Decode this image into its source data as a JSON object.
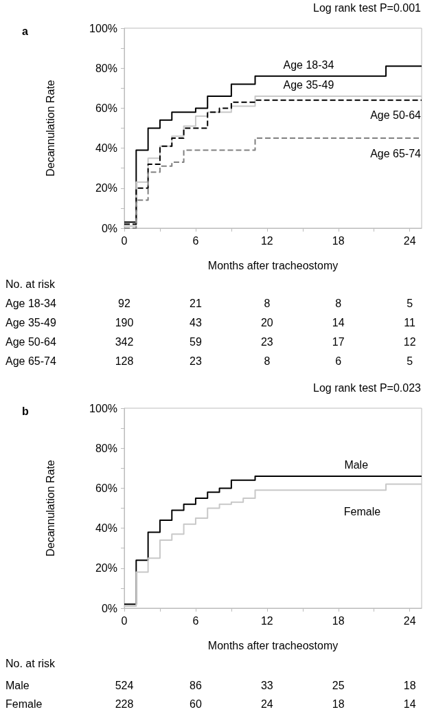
{
  "chart_data": [
    {
      "type": "step",
      "title": "a",
      "xlabel": "Months after tracheostomy",
      "ylabel": "Decannulation Rate",
      "xlim": [
        0,
        25
      ],
      "xticks": [
        0,
        {
          "value": 3,
          "label": null
        },
        6,
        {
          "value": 9,
          "label": null
        },
        12,
        {
          "value": 15,
          "label": null
        },
        18,
        {
          "value": 21,
          "label": null
        },
        24
      ],
      "ylim": [
        0,
        100
      ],
      "yticks": [
        {
          "value": 0,
          "label": "0%"
        },
        {
          "value": 10,
          "label": null
        },
        {
          "value": 20,
          "label": "20%"
        },
        {
          "value": 30,
          "label": null
        },
        {
          "value": 40,
          "label": "40%"
        },
        {
          "value": 50,
          "label": null
        },
        {
          "value": 60,
          "label": "60%"
        },
        {
          "value": 70,
          "label": null
        },
        {
          "value": 80,
          "label": "80%"
        },
        {
          "value": 90,
          "label": null
        },
        {
          "value": 100,
          "label": "100%"
        }
      ],
      "grid": false,
      "legend": false,
      "marker": "none",
      "series": [
        {
          "name": "Age 18-34",
          "color": "#000000",
          "line_style": "solid",
          "x": [
            0,
            1,
            2,
            3,
            4,
            6,
            7,
            9,
            11,
            22,
            25
          ],
          "values": [
            3,
            39,
            50,
            54,
            58,
            60,
            66,
            72,
            76,
            81,
            81
          ]
        },
        {
          "name": "Age 35-49",
          "color": "#c8c8c8",
          "line_style": "solid",
          "x": [
            0,
            1,
            2,
            3,
            4,
            5,
            6,
            7,
            9,
            11,
            25
          ],
          "values": [
            1,
            23,
            35,
            41,
            46,
            51,
            56,
            58,
            61,
            66,
            66
          ]
        },
        {
          "name": "Age 50-64",
          "color": "#000000",
          "line_style": "dashed",
          "x": [
            0,
            1,
            2,
            3,
            4,
            5,
            7,
            8,
            9,
            11,
            25
          ],
          "values": [
            2,
            20,
            32,
            41,
            45,
            50,
            58,
            60,
            63,
            64,
            64
          ]
        },
        {
          "name": "Age 65-74",
          "color": "#808080",
          "line_style": "dashed",
          "x": [
            0,
            1,
            2,
            3,
            4,
            5,
            11,
            25
          ],
          "values": [
            0,
            14,
            28,
            31,
            33,
            39,
            45,
            45
          ]
        }
      ],
      "annotations": [
        "Log rank test P=0.001",
        "No. at risk",
        "Age 18-34",
        "92 21 8 8 5",
        "Age 35-49",
        "190 43 20 14 11",
        "Age 50-64",
        "342 59 23 17 12",
        "Age 65-74",
        "128 23 8 6 5"
      ]
    },
    {
      "type": "step",
      "title": "b",
      "xlabel": "Months after tracheostomy",
      "ylabel": "Decannulation Rate",
      "xlim": [
        0,
        25
      ],
      "xticks": [
        0,
        {
          "value": 3,
          "label": null
        },
        6,
        {
          "value": 9,
          "label": null
        },
        12,
        {
          "value": 15,
          "label": null
        },
        18,
        {
          "value": 21,
          "label": null
        },
        24
      ],
      "ylim": [
        0,
        100
      ],
      "yticks": [
        {
          "value": 0,
          "label": "0%"
        },
        {
          "value": 10,
          "label": null
        },
        {
          "value": 20,
          "label": "20%"
        },
        {
          "value": 30,
          "label": null
        },
        {
          "value": 40,
          "label": "40%"
        },
        {
          "value": 50,
          "label": null
        },
        {
          "value": 60,
          "label": "60%"
        },
        {
          "value": 70,
          "label": null
        },
        {
          "value": 80,
          "label": "80%"
        },
        {
          "value": 90,
          "label": null
        },
        {
          "value": 100,
          "label": "100%"
        }
      ],
      "grid": false,
      "legend": false,
      "marker": "none",
      "series": [
        {
          "name": "Male",
          "color": "#000000",
          "line_style": "solid",
          "x": [
            0,
            1,
            2,
            3,
            4,
            5,
            6,
            7,
            8,
            9,
            11,
            25
          ],
          "values": [
            2,
            24,
            38,
            44,
            49,
            52,
            55,
            58,
            60,
            64,
            66,
            66
          ]
        },
        {
          "name": "Female",
          "color": "#c8c8c8",
          "line_style": "solid",
          "x": [
            0,
            1,
            2,
            3,
            4,
            5,
            6,
            7,
            8,
            9,
            10,
            11,
            22,
            25
          ],
          "values": [
            1,
            18,
            25,
            34,
            37,
            42,
            45,
            50,
            52,
            53,
            55,
            59,
            62,
            62
          ]
        }
      ],
      "annotations": [
        "Log rank test P=0.023",
        "No. at risk",
        "Male",
        "524 86 33 25 18",
        "Female",
        "228 60 24 18 14"
      ]
    }
  ]
}
